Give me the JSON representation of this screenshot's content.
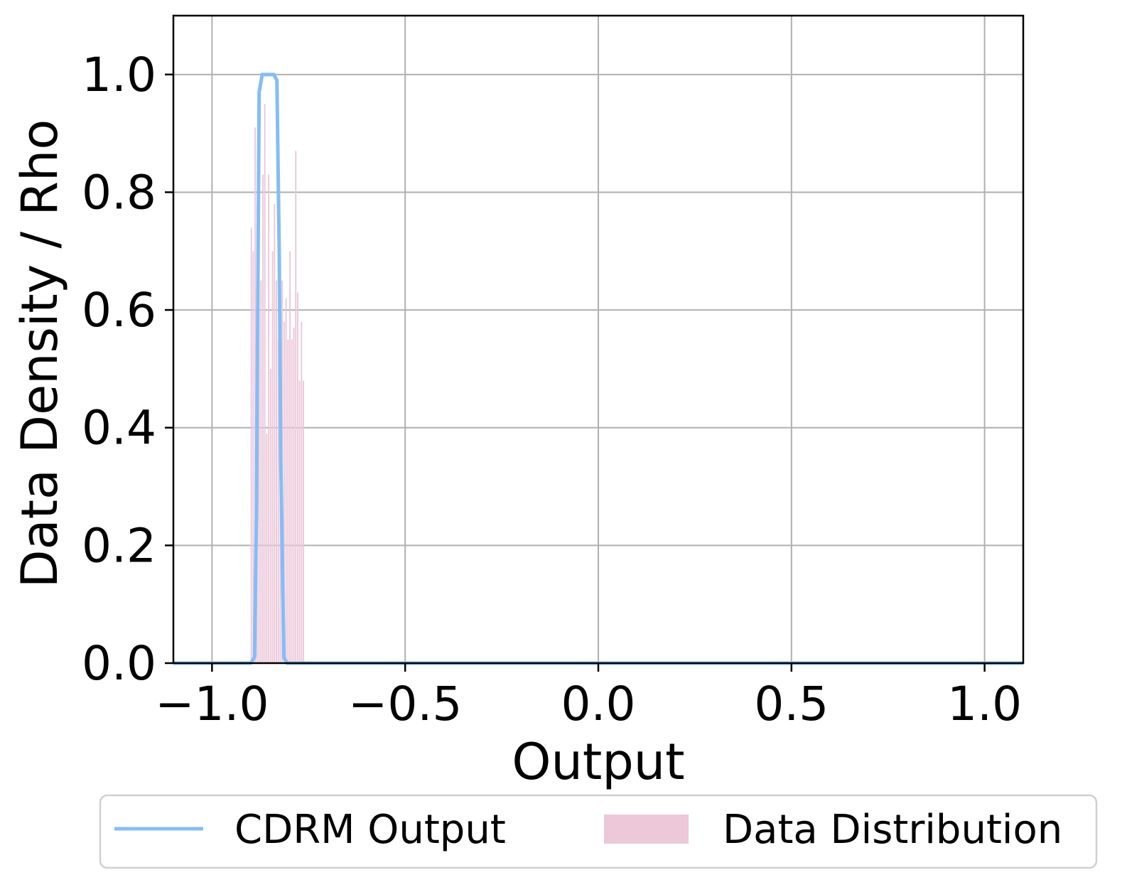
{
  "chart_data": {
    "type": "line",
    "xlabel": "Output",
    "ylabel": "Data Density / Rho",
    "xlim": [
      -1.1,
      1.1
    ],
    "ylim": [
      0.0,
      1.1
    ],
    "grid": true,
    "legend_position": "bottom",
    "x_ticks": [
      -1.0,
      -0.5,
      0.0,
      0.5,
      1.0
    ],
    "x_tick_labels": [
      "−1.0",
      "−0.5",
      "0.0",
      "0.5",
      "1.0"
    ],
    "y_ticks": [
      0.0,
      0.2,
      0.4,
      0.6,
      0.8,
      1.0
    ],
    "y_tick_labels": [
      "0.0",
      "0.2",
      "0.4",
      "0.6",
      "0.8",
      "1.0"
    ],
    "series": [
      {
        "name": "CDRM Output",
        "kind": "line",
        "color": "#84bdf6",
        "x": [
          -1.1,
          -0.9,
          -0.89,
          -0.885,
          -0.878,
          -0.87,
          -0.862,
          -0.85,
          -0.84,
          -0.832,
          -0.826,
          -0.822,
          -0.814,
          -0.806,
          -0.8,
          -0.79,
          1.1
        ],
        "y": [
          0.0,
          0.0,
          0.01,
          0.25,
          0.97,
          1.0,
          1.0,
          1.0,
          1.0,
          0.99,
          0.7,
          0.35,
          0.01,
          0.0,
          0.0,
          0.0,
          0.0
        ]
      },
      {
        "name": "Data Distribution",
        "kind": "histogram",
        "color": "#ecc8d9",
        "bin_edges": [
          -0.9,
          -0.895,
          -0.89,
          -0.885,
          -0.88,
          -0.875,
          -0.87,
          -0.865,
          -0.86,
          -0.855,
          -0.85,
          -0.845,
          -0.84,
          -0.835,
          -0.83,
          -0.825,
          -0.82,
          -0.815,
          -0.81,
          -0.805,
          -0.8,
          -0.795,
          -0.79,
          -0.785,
          -0.78,
          -0.775,
          -0.77,
          -0.765,
          -0.76
        ],
        "values": [
          0.74,
          0.7,
          0.91,
          0.78,
          0.81,
          0.65,
          0.83,
          0.95,
          0.39,
          0.83,
          0.5,
          0.7,
          0.78,
          0.65,
          0.55,
          0.57,
          0.65,
          0.58,
          0.62,
          0.55,
          0.7,
          0.55,
          0.57,
          0.87,
          0.63,
          0.48,
          0.58,
          0.48
        ]
      }
    ]
  },
  "legend": {
    "items": [
      {
        "label": "CDRM Output",
        "color": "#84bdf6",
        "kind": "line"
      },
      {
        "label": "Data Distribution",
        "color": "#ecc8d9",
        "kind": "patch"
      }
    ]
  }
}
